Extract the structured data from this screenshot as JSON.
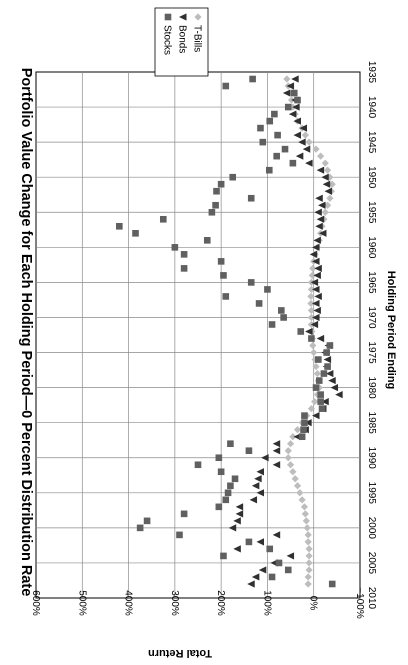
{
  "chart_data": {
    "type": "scatter",
    "title": "Portfolio Value Change for Each Holding Period—0 Percent Distribution Rate",
    "xlabel": "Holding Period Ending",
    "ylabel": "Total Return",
    "x_ticks": [
      "1935",
      "1940",
      "1945",
      "1950",
      "1955",
      "1960",
      "1965",
      "1970",
      "1975",
      "1980",
      "1985",
      "1990",
      "1995",
      "2000",
      "2005",
      "2010"
    ],
    "y_ticks": [
      "600%",
      "500%",
      "400%",
      "300%",
      "200%",
      "100%",
      "0%",
      "−100%"
    ],
    "xlim": [
      1935,
      2010
    ],
    "ylim": [
      -100,
      600
    ],
    "grid": true,
    "legend_position": "top-right",
    "orientation": "rotated-90-clockwise",
    "series": [
      {
        "name": "Stocks",
        "color": "#606060",
        "marker": "square",
        "points": [
          [
            1936,
            132
          ],
          [
            1937,
            190
          ],
          [
            1938,
            42
          ],
          [
            1939,
            35
          ],
          [
            1940,
            55
          ],
          [
            1941,
            85
          ],
          [
            1942,
            95
          ],
          [
            1943,
            115
          ],
          [
            1944,
            78
          ],
          [
            1945,
            110
          ],
          [
            1946,
            62
          ],
          [
            1947,
            80
          ],
          [
            1948,
            45
          ],
          [
            1949,
            96
          ],
          [
            1950,
            175
          ],
          [
            1951,
            200
          ],
          [
            1952,
            210
          ],
          [
            1953,
            135
          ],
          [
            1954,
            212
          ],
          [
            1955,
            220
          ],
          [
            1956,
            325
          ],
          [
            1957,
            420
          ],
          [
            1958,
            385
          ],
          [
            1959,
            230
          ],
          [
            1960,
            300
          ],
          [
            1961,
            280
          ],
          [
            1962,
            200
          ],
          [
            1963,
            280
          ],
          [
            1964,
            195
          ],
          [
            1965,
            135
          ],
          [
            1966,
            100
          ],
          [
            1967,
            190
          ],
          [
            1968,
            118
          ],
          [
            1969,
            70
          ],
          [
            1970,
            65
          ],
          [
            1971,
            90
          ],
          [
            1972,
            28
          ],
          [
            1973,
            5
          ],
          [
            1974,
            -35
          ],
          [
            1975,
            -28
          ],
          [
            1976,
            -10
          ],
          [
            1977,
            -30
          ],
          [
            1978,
            -22
          ],
          [
            1979,
            -12
          ],
          [
            1980,
            -5
          ],
          [
            1981,
            -15
          ],
          [
            1982,
            -15
          ],
          [
            1983,
            -18
          ],
          [
            1984,
            20
          ],
          [
            1985,
            20
          ],
          [
            1986,
            22
          ],
          [
            1987,
            25
          ],
          [
            1988,
            180
          ],
          [
            1989,
            140
          ],
          [
            1990,
            205
          ],
          [
            1991,
            250
          ],
          [
            1992,
            200
          ],
          [
            1993,
            170
          ],
          [
            1994,
            180
          ],
          [
            1995,
            185
          ],
          [
            1996,
            190
          ],
          [
            1997,
            205
          ],
          [
            1998,
            280
          ],
          [
            1999,
            360
          ],
          [
            2000,
            375
          ],
          [
            2001,
            290
          ],
          [
            2002,
            140
          ],
          [
            2003,
            95
          ],
          [
            2004,
            195
          ],
          [
            2005,
            75
          ],
          [
            2006,
            55
          ],
          [
            2007,
            90
          ],
          [
            2008,
            -40
          ]
        ]
      },
      {
        "name": "Bonds",
        "color": "#303030",
        "marker": "triangle",
        "points": [
          [
            1936,
            40
          ],
          [
            1937,
            50
          ],
          [
            1938,
            58
          ],
          [
            1939,
            40
          ],
          [
            1940,
            38
          ],
          [
            1941,
            45
          ],
          [
            1942,
            35
          ],
          [
            1943,
            22
          ],
          [
            1944,
            35
          ],
          [
            1945,
            25
          ],
          [
            1946,
            15
          ],
          [
            1947,
            30
          ],
          [
            1948,
            10
          ],
          [
            1949,
            -15
          ],
          [
            1950,
            -25
          ],
          [
            1951,
            -28
          ],
          [
            1952,
            -32
          ],
          [
            1953,
            -12
          ],
          [
            1954,
            -18
          ],
          [
            1955,
            -10
          ],
          [
            1956,
            -15
          ],
          [
            1957,
            -12
          ],
          [
            1958,
            -20
          ],
          [
            1959,
            -8
          ],
          [
            1960,
            -5
          ],
          [
            1961,
            0
          ],
          [
            1962,
            -5
          ],
          [
            1963,
            -10
          ],
          [
            1964,
            -8
          ],
          [
            1965,
            -2
          ],
          [
            1966,
            -5
          ],
          [
            1967,
            -10
          ],
          [
            1968,
            -5
          ],
          [
            1969,
            -8
          ],
          [
            1970,
            -5
          ],
          [
            1971,
            -2
          ],
          [
            1972,
            10
          ],
          [
            1973,
            -15
          ],
          [
            1974,
            -32
          ],
          [
            1975,
            -25
          ],
          [
            1976,
            -30
          ],
          [
            1977,
            -28
          ],
          [
            1978,
            -35
          ],
          [
            1979,
            -40
          ],
          [
            1980,
            -45
          ],
          [
            1981,
            -55
          ],
          [
            1982,
            -25
          ],
          [
            1983,
            -20
          ],
          [
            1984,
            -5
          ],
          [
            1985,
            12
          ],
          [
            1986,
            18
          ],
          [
            1987,
            35
          ],
          [
            1988,
            80
          ],
          [
            1989,
            80
          ],
          [
            1990,
            105
          ],
          [
            1991,
            80
          ],
          [
            1992,
            115
          ],
          [
            1993,
            120
          ],
          [
            1994,
            125
          ],
          [
            1995,
            115
          ],
          [
            1996,
            130
          ],
          [
            1997,
            160
          ],
          [
            1998,
            160
          ],
          [
            1999,
            165
          ],
          [
            2000,
            175
          ],
          [
            2001,
            80
          ],
          [
            2002,
            115
          ],
          [
            2003,
            165
          ],
          [
            2004,
            50
          ],
          [
            2005,
            85
          ],
          [
            2006,
            110
          ],
          [
            2007,
            125
          ],
          [
            2008,
            135
          ]
        ]
      },
      {
        "name": "T-Bills",
        "color": "#bdbdbd",
        "marker": "diamond",
        "points": [
          [
            1936,
            58
          ],
          [
            1937,
            55
          ],
          [
            1938,
            52
          ],
          [
            1939,
            48
          ],
          [
            1940,
            45
          ],
          [
            1941,
            40
          ],
          [
            1942,
            35
          ],
          [
            1943,
            25
          ],
          [
            1944,
            18
          ],
          [
            1945,
            10
          ],
          [
            1946,
            -5
          ],
          [
            1947,
            -15
          ],
          [
            1948,
            -25
          ],
          [
            1949,
            -30
          ],
          [
            1950,
            -35
          ],
          [
            1951,
            -40
          ],
          [
            1952,
            -38
          ],
          [
            1953,
            -35
          ],
          [
            1954,
            -30
          ],
          [
            1955,
            -25
          ],
          [
            1956,
            -22
          ],
          [
            1957,
            -18
          ],
          [
            1958,
            -15
          ],
          [
            1959,
            -12
          ],
          [
            1960,
            -8
          ],
          [
            1961,
            -3
          ],
          [
            1962,
            0
          ],
          [
            1963,
            2
          ],
          [
            1964,
            3
          ],
          [
            1965,
            5
          ],
          [
            1966,
            5
          ],
          [
            1967,
            6
          ],
          [
            1968,
            6
          ],
          [
            1969,
            5
          ],
          [
            1970,
            5
          ],
          [
            1971,
            5
          ],
          [
            1972,
            4
          ],
          [
            1973,
            3
          ],
          [
            1974,
            2
          ],
          [
            1975,
            0
          ],
          [
            1976,
            -3
          ],
          [
            1977,
            -5
          ],
          [
            1978,
            -8
          ],
          [
            1979,
            -10
          ],
          [
            1980,
            -12
          ],
          [
            1981,
            -8
          ],
          [
            1982,
            -2
          ],
          [
            1983,
            5
          ],
          [
            1984,
            15
          ],
          [
            1985,
            25
          ],
          [
            1986,
            35
          ],
          [
            1987,
            45
          ],
          [
            1988,
            50
          ],
          [
            1989,
            55
          ],
          [
            1990,
            55
          ],
          [
            1991,
            50
          ],
          [
            1992,
            45
          ],
          [
            1993,
            40
          ],
          [
            1994,
            35
          ],
          [
            1995,
            30
          ],
          [
            1996,
            25
          ],
          [
            1997,
            20
          ],
          [
            1998,
            18
          ],
          [
            1999,
            16
          ],
          [
            2000,
            14
          ],
          [
            2001,
            12
          ],
          [
            2002,
            12
          ],
          [
            2003,
            10
          ],
          [
            2004,
            10
          ],
          [
            2005,
            10
          ],
          [
            2006,
            10
          ],
          [
            2007,
            12
          ],
          [
            2008,
            12
          ]
        ]
      }
    ]
  }
}
